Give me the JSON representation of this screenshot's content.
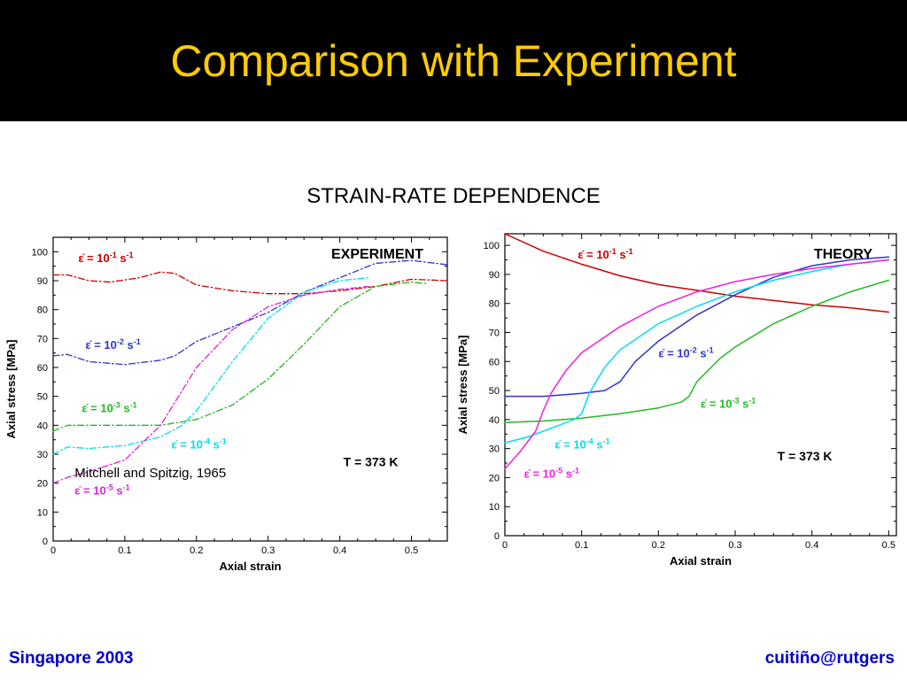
{
  "slide": {
    "title": "Comparison with Experiment",
    "subtitle": "STRAIN-RATE DEPENDENCE",
    "footer_left": "Singapore 2003",
    "footer_right": "cuitiño@rutgers",
    "colors": {
      "title": "#ffcc00",
      "footer": "#0000cc",
      "background": "#ffffff",
      "title_bar": "#000000"
    }
  },
  "chart_data": [
    {
      "type": "line",
      "panel_label": "EXPERIMENT",
      "xlabel": "Axial strain",
      "ylabel": "Axial stress [MPa]",
      "xlim": [
        0,
        0.55
      ],
      "ylim": [
        0,
        105
      ],
      "xticks": [
        0,
        0.1,
        0.2,
        0.3,
        0.4,
        0.5
      ],
      "yticks": [
        0,
        10,
        20,
        30,
        40,
        50,
        60,
        70,
        80,
        90,
        100
      ],
      "grid": false,
      "line_style": "dash-dot",
      "annotations": [
        {
          "text": "T = 373 K",
          "x": 0.405,
          "y": 25.8
        },
        {
          "text": "Mitchell and Spitzig, 1965",
          "x": 0.03,
          "y": 22
        }
      ],
      "series": [
        {
          "rate_label": {
            "prefix": "ε̇ = 10",
            "exp": "-1",
            "unit": " s",
            "unit_exp": "-1",
            "x": 0.035,
            "y": 96.5
          },
          "color": "#cc0000",
          "x": [
            0,
            0.02,
            0.05,
            0.08,
            0.12,
            0.15,
            0.17,
            0.2,
            0.25,
            0.3,
            0.35,
            0.4,
            0.45,
            0.48,
            0.5,
            0.55
          ],
          "y": [
            92,
            92,
            90,
            89.5,
            91,
            93,
            92.5,
            88.5,
            86.5,
            85.5,
            85.5,
            86.5,
            88,
            89.5,
            90.5,
            90
          ]
        },
        {
          "rate_label": {
            "prefix": "ε̇ = 10",
            "exp": "-2",
            "unit": " s",
            "unit_exp": "-1",
            "x": 0.045,
            "y": 66.5
          },
          "color": "#3333cc",
          "x": [
            0,
            0.02,
            0.05,
            0.1,
            0.15,
            0.17,
            0.2,
            0.25,
            0.3,
            0.35,
            0.4,
            0.45,
            0.5,
            0.55
          ],
          "y": [
            64,
            64.5,
            62,
            61,
            62.5,
            64,
            69,
            74,
            79,
            86,
            91,
            96,
            97,
            95.5
          ]
        },
        {
          "rate_label": {
            "prefix": "ε̇ = 10",
            "exp": "-3",
            "unit": " s",
            "unit_exp": "-1",
            "x": 0.04,
            "y": 44.5
          },
          "color": "#22bb22",
          "x": [
            0,
            0.02,
            0.05,
            0.1,
            0.15,
            0.2,
            0.25,
            0.3,
            0.35,
            0.4,
            0.45,
            0.5,
            0.52
          ],
          "y": [
            38,
            40,
            40,
            40,
            40,
            42,
            47,
            56,
            68,
            81,
            88,
            89.5,
            89
          ]
        },
        {
          "rate_label": {
            "prefix": "ε̇ = 10",
            "exp": "-4",
            "unit": " s",
            "unit_exp": "-1",
            "x": 0.165,
            "y": 32
          },
          "color": "#00e0ee",
          "x": [
            0,
            0.02,
            0.05,
            0.1,
            0.15,
            0.18,
            0.2,
            0.25,
            0.3,
            0.35,
            0.4,
            0.44
          ],
          "y": [
            30,
            32.5,
            32,
            33,
            36,
            40,
            45,
            62,
            77,
            86,
            90,
            91
          ]
        },
        {
          "rate_label": {
            "prefix": "ε̇ = 10",
            "exp": "-5",
            "unit": " s",
            "unit_exp": "-1",
            "x": 0.03,
            "y": 16
          },
          "color": "#dd22dd",
          "x": [
            0,
            0.02,
            0.05,
            0.1,
            0.15,
            0.2,
            0.25,
            0.3,
            0.35,
            0.4,
            0.44
          ],
          "y": [
            20,
            22,
            24,
            28,
            40,
            60,
            73,
            81,
            85,
            87,
            88
          ]
        }
      ]
    },
    {
      "type": "line",
      "panel_label": "THEORY",
      "xlabel": "Axial strain",
      "ylabel": "Axial stress [MPa]",
      "xlim": [
        0,
        0.51
      ],
      "ylim": [
        0,
        104
      ],
      "xticks": [
        0,
        0.1,
        0.2,
        0.3,
        0.4,
        0.5
      ],
      "yticks": [
        0,
        10,
        20,
        30,
        40,
        50,
        60,
        70,
        80,
        90,
        100
      ],
      "grid": false,
      "line_style": "solid",
      "annotations": [
        {
          "text": "T = 373 K",
          "x": 0.355,
          "y": 26
        }
      ],
      "series": [
        {
          "rate_label": {
            "prefix": "ε̇ = 10",
            "exp": "-1",
            "unit": " s",
            "unit_exp": "-1",
            "x": 0.095,
            "y": 95.5
          },
          "color": "#cc0000",
          "x": [
            0,
            0.05,
            0.1,
            0.15,
            0.2,
            0.25,
            0.3,
            0.35,
            0.4,
            0.45,
            0.5
          ],
          "y": [
            104,
            98,
            93.5,
            89.5,
            86.5,
            84.5,
            82.5,
            81,
            79.5,
            78.5,
            77
          ]
        },
        {
          "rate_label": {
            "prefix": "ε̇ = 10",
            "exp": "-2",
            "unit": " s",
            "unit_exp": "-1",
            "x": 0.2,
            "y": 61.5
          },
          "color": "#3333cc",
          "x": [
            0,
            0.05,
            0.1,
            0.13,
            0.15,
            0.17,
            0.2,
            0.25,
            0.3,
            0.35,
            0.4,
            0.45,
            0.5
          ],
          "y": [
            48,
            48,
            49,
            50,
            53,
            60,
            67,
            76,
            83,
            89,
            93,
            95,
            96
          ]
        },
        {
          "rate_label": {
            "prefix": "ε̇ = 10",
            "exp": "-3",
            "unit": " s",
            "unit_exp": "-1",
            "x": 0.255,
            "y": 44
          },
          "color": "#22bb22",
          "x": [
            0,
            0.05,
            0.1,
            0.15,
            0.2,
            0.23,
            0.24,
            0.25,
            0.28,
            0.3,
            0.35,
            0.4,
            0.45,
            0.5
          ],
          "y": [
            39,
            39.5,
            40.5,
            42,
            44,
            46,
            48,
            53,
            61,
            65,
            73,
            79,
            84,
            88
          ]
        },
        {
          "rate_label": {
            "prefix": "ε̇ = 10",
            "exp": "-4",
            "unit": " s",
            "unit_exp": "-1",
            "x": 0.065,
            "y": 30
          },
          "color": "#00e0ee",
          "x": [
            0,
            0.03,
            0.06,
            0.09,
            0.1,
            0.11,
            0.13,
            0.15,
            0.2,
            0.25,
            0.3,
            0.35,
            0.4,
            0.45,
            0.5
          ],
          "y": [
            32,
            34,
            37,
            40,
            42,
            49,
            58,
            64,
            73,
            79,
            84,
            88,
            91,
            93.5,
            95
          ]
        },
        {
          "rate_label": {
            "prefix": "ε̇ = 10",
            "exp": "-5",
            "unit": " s",
            "unit_exp": "-1",
            "x": 0.025,
            "y": 20
          },
          "color": "#ee22dd",
          "x": [
            0,
            0.02,
            0.04,
            0.05,
            0.06,
            0.08,
            0.1,
            0.15,
            0.2,
            0.25,
            0.3,
            0.35,
            0.4,
            0.45,
            0.5
          ],
          "y": [
            23,
            29,
            36,
            43,
            49,
            57,
            63,
            72,
            79,
            84,
            87.5,
            90,
            92,
            93.5,
            95
          ]
        }
      ]
    }
  ]
}
